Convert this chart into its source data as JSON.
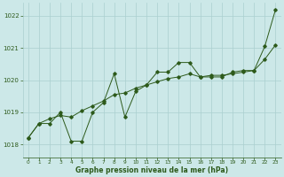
{
  "x": [
    0,
    1,
    2,
    3,
    4,
    5,
    6,
    7,
    8,
    9,
    10,
    11,
    12,
    13,
    14,
    15,
    16,
    17,
    18,
    19,
    20,
    21,
    22,
    23
  ],
  "y_line1": [
    1018.2,
    1018.65,
    1018.65,
    1019.0,
    1018.1,
    1018.1,
    1019.0,
    1019.3,
    1020.2,
    1018.85,
    1019.65,
    1019.85,
    1020.25,
    1020.25,
    1020.55,
    1020.55,
    1020.1,
    1020.1,
    1020.1,
    1020.25,
    1020.3,
    1020.3,
    1021.05,
    1022.2
  ],
  "y_line2": [
    1018.2,
    1018.65,
    1018.8,
    1018.9,
    1018.85,
    1019.05,
    1019.2,
    1019.35,
    1019.55,
    1019.6,
    1019.75,
    1019.85,
    1019.95,
    1020.05,
    1020.1,
    1020.2,
    1020.1,
    1020.15,
    1020.15,
    1020.2,
    1020.25,
    1020.3,
    1020.65,
    1021.1
  ],
  "line_color": "#2d5a1b",
  "bg_color": "#cce8e8",
  "grid_color": "#aacfcf",
  "xlabel": "Graphe pression niveau de la mer (hPa)",
  "ylim": [
    1017.6,
    1022.4
  ],
  "xlim": [
    -0.5,
    23.5
  ],
  "yticks": [
    1018,
    1019,
    1020,
    1021,
    1022
  ],
  "xticks": [
    0,
    1,
    2,
    3,
    4,
    5,
    6,
    7,
    8,
    9,
    10,
    11,
    12,
    13,
    14,
    15,
    16,
    17,
    18,
    19,
    20,
    21,
    22,
    23
  ]
}
